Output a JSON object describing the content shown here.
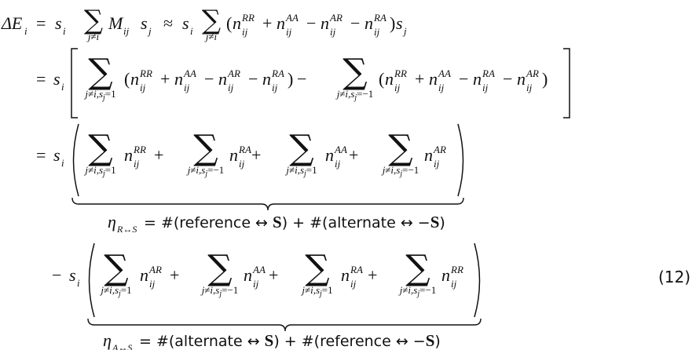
{
  "equation": {
    "number": "(12)",
    "line1": {
      "lhs": "ΔE",
      "lhs_sub": "i",
      "equals": "=",
      "s_i": "s",
      "s_i_sub": "i",
      "sum": "∑",
      "sum_limit_neq": "j≠i",
      "M": "M",
      "M_sub": "ij",
      "s_j": "s",
      "s_j_sub": "j",
      "approx": "≈",
      "open_paren": "(",
      "close_paren": ")",
      "n": "n",
      "sup_RR": "RR",
      "sup_AA": "AA",
      "sup_AR": "AR",
      "sup_RA": "RA",
      "sub_ij": "ij",
      "plus": "+",
      "minus": "−"
    },
    "line2": {
      "sum_limit_pos": "j≠i,s",
      "sum_limit_pos_tail": "=1",
      "sum_limit_neg_tail": "=−1",
      "sum_limit_j": "j"
    },
    "annotation_R": {
      "eta": "η",
      "eta_sub": "R↔S",
      "text_eq": "= #(reference ↔ ",
      "S": "S",
      "mid": ") + #(alternate ↔ −",
      "end": ")"
    },
    "annotation_A": {
      "eta": "η",
      "eta_sub": "A↔S",
      "text_eq": "= #(alternate ↔ ",
      "S": "S",
      "mid": ") + #(reference ↔ −",
      "end": ")"
    }
  }
}
